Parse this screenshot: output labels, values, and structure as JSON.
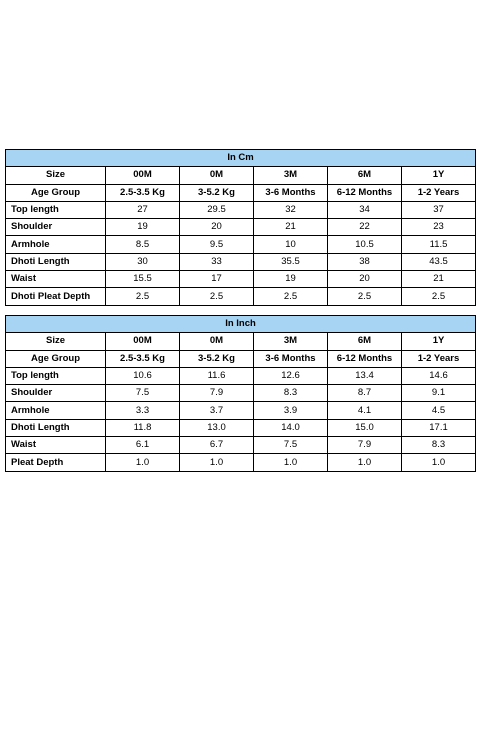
{
  "cm_table": {
    "title": "In Cm",
    "columns": [
      "Size",
      "00M",
      "0M",
      "3M",
      "6M",
      "1Y"
    ],
    "age_group": [
      "Age Group",
      "2.5-3.5 Kg",
      "3-5.2 Kg",
      "3-6 Months",
      "6-12 Months",
      "1-2 Years"
    ],
    "rows": [
      {
        "label": "Top length",
        "values": [
          "27",
          "29.5",
          "32",
          "34",
          "37"
        ]
      },
      {
        "label": "Shoulder",
        "values": [
          "19",
          "20",
          "21",
          "22",
          "23"
        ]
      },
      {
        "label": "Armhole",
        "values": [
          "8.5",
          "9.5",
          "10",
          "10.5",
          "11.5"
        ]
      },
      {
        "label": "Dhoti Length",
        "values": [
          "30",
          "33",
          "35.5",
          "38",
          "43.5"
        ]
      },
      {
        "label": "Waist",
        "values": [
          "15.5",
          "17",
          "19",
          "20",
          "21"
        ]
      },
      {
        "label": "Dhoti Pleat Depth",
        "values": [
          "2.5",
          "2.5",
          "2.5",
          "2.5",
          "2.5"
        ]
      }
    ]
  },
  "inch_table": {
    "title": "In Inch",
    "columns": [
      "Size",
      "00M",
      "0M",
      "3M",
      "6M",
      "1Y"
    ],
    "age_group": [
      "Age Group",
      "2.5-3.5 Kg",
      "3-5.2 Kg",
      "3-6 Months",
      "6-12 Months",
      "1-2 Years"
    ],
    "rows": [
      {
        "label": "Top length",
        "values": [
          "10.6",
          "11.6",
          "12.6",
          "13.4",
          "14.6"
        ]
      },
      {
        "label": "Shoulder",
        "values": [
          "7.5",
          "7.9",
          "8.3",
          "8.7",
          "9.1"
        ]
      },
      {
        "label": "Armhole",
        "values": [
          "3.3",
          "3.7",
          "3.9",
          "4.1",
          "4.5"
        ]
      },
      {
        "label": "Dhoti Length",
        "values": [
          "11.8",
          "13.0",
          "14.0",
          "15.0",
          "17.1"
        ]
      },
      {
        "label": "Waist",
        "values": [
          "6.1",
          "6.7",
          "7.5",
          "7.9",
          "8.3"
        ]
      },
      {
        "label": "Pleat Depth",
        "values": [
          "1.0",
          "1.0",
          "1.0",
          "1.0",
          "1.0"
        ]
      }
    ]
  },
  "colors": {
    "banner": "#a7d4f2",
    "border": "#000000"
  }
}
